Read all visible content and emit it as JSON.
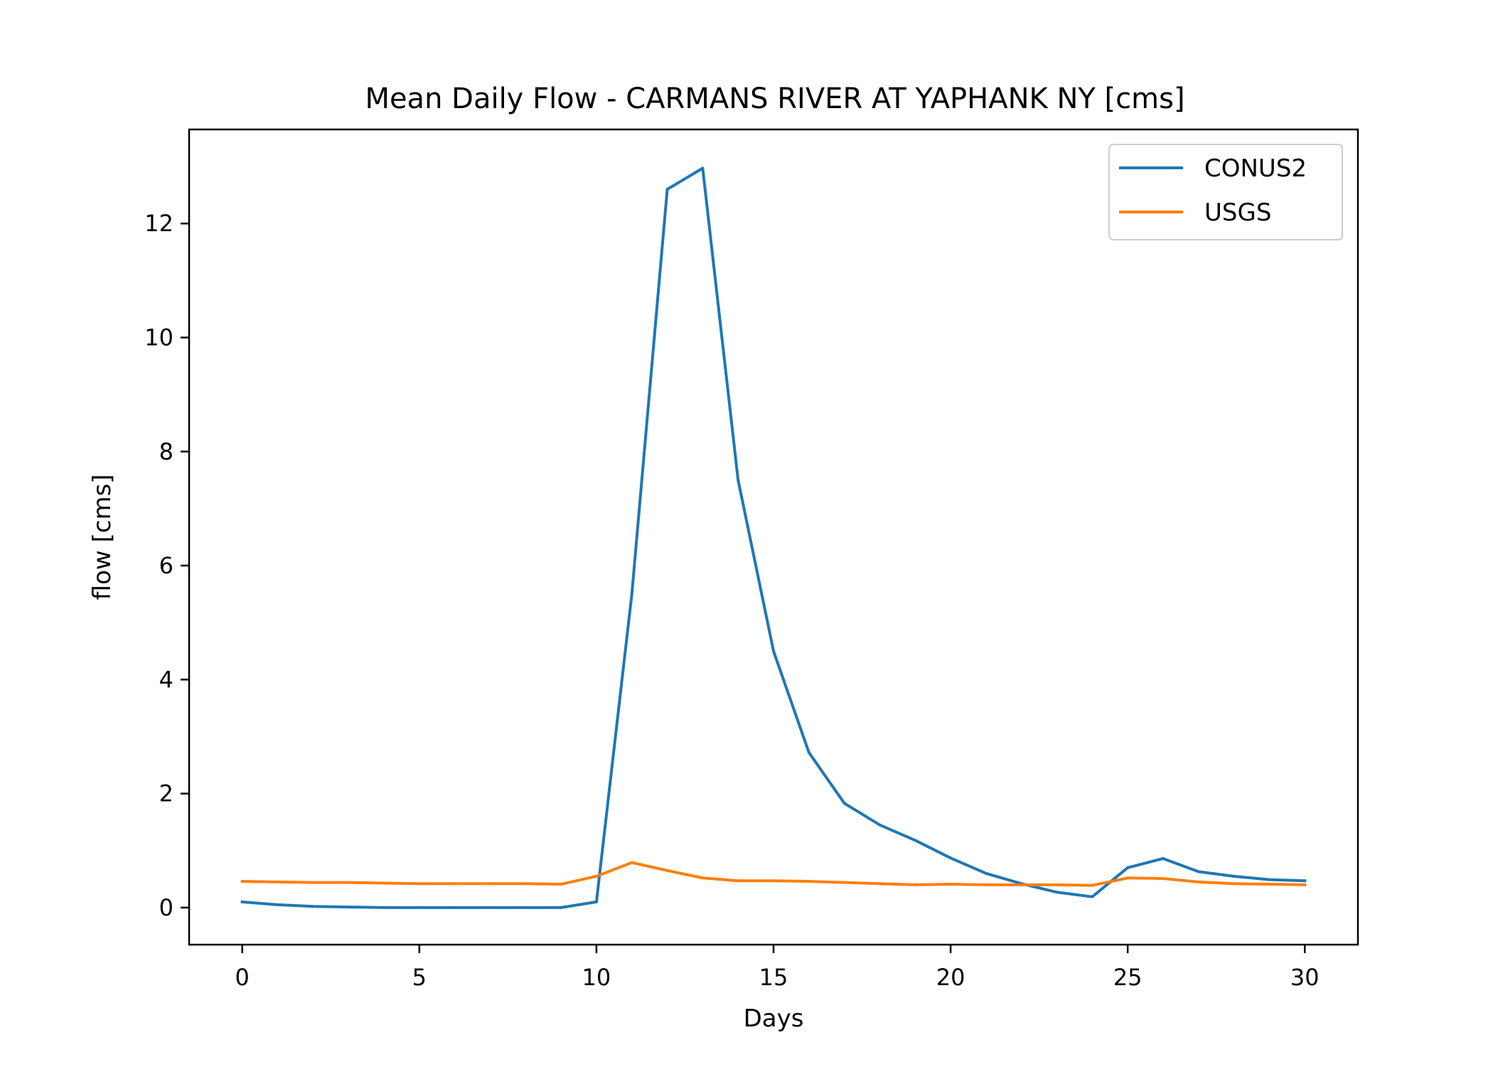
{
  "chart_data": {
    "type": "line",
    "title": "Mean Daily Flow - CARMANS RIVER AT YAPHANK NY [cms]",
    "xlabel": "Days",
    "ylabel": "flow [cms]",
    "xlim": [
      -1.5,
      31.5
    ],
    "ylim": [
      -0.65,
      13.65
    ],
    "xticks": [
      0,
      5,
      10,
      15,
      20,
      25,
      30
    ],
    "yticks": [
      0,
      2,
      4,
      6,
      8,
      10,
      12
    ],
    "grid": false,
    "legend_position": "top-right",
    "x": [
      0,
      1,
      2,
      3,
      4,
      5,
      6,
      7,
      8,
      9,
      10,
      11,
      12,
      13,
      14,
      15,
      16,
      17,
      18,
      19,
      20,
      21,
      22,
      23,
      24,
      25,
      26,
      27,
      28,
      29,
      30
    ],
    "series": [
      {
        "name": "CONUS2",
        "color": "#1f77b4",
        "values": [
          0.1,
          0.05,
          0.02,
          0.01,
          0.0,
          0.0,
          0.0,
          0.0,
          0.0,
          0.0,
          0.1,
          5.5,
          12.6,
          12.97,
          7.5,
          4.5,
          2.72,
          1.83,
          1.45,
          1.18,
          0.87,
          0.6,
          0.42,
          0.27,
          0.19,
          0.7,
          0.86,
          0.63,
          0.55,
          0.49,
          0.47
        ]
      },
      {
        "name": "USGS",
        "color": "#ff7f0e",
        "values": [
          0.46,
          0.45,
          0.44,
          0.44,
          0.43,
          0.42,
          0.42,
          0.42,
          0.42,
          0.41,
          0.55,
          0.79,
          0.65,
          0.52,
          0.47,
          0.47,
          0.46,
          0.44,
          0.42,
          0.4,
          0.41,
          0.4,
          0.4,
          0.4,
          0.39,
          0.52,
          0.51,
          0.45,
          0.42,
          0.41,
          0.4
        ]
      }
    ]
  }
}
